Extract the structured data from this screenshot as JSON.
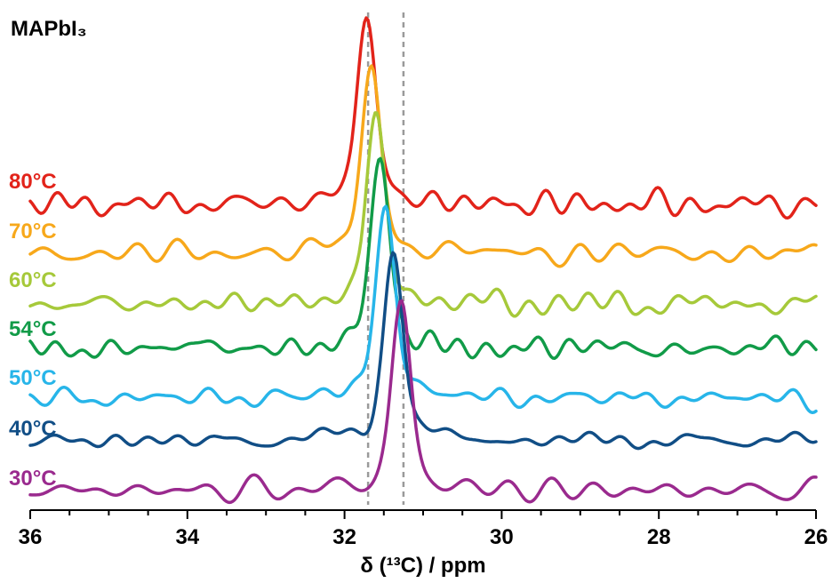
{
  "chart_data": {
    "type": "line",
    "title": "MAPbI₃",
    "xlabel": "δ (¹³C) / ppm",
    "xlim": [
      36,
      26
    ],
    "x_ticks": [
      "36",
      "34",
      "32",
      "30",
      "28",
      "26"
    ],
    "x_tick_values": [
      36,
      34,
      32,
      30,
      28,
      26
    ],
    "reference_lines_ppm": [
      31.7,
      31.25
    ],
    "series": [
      {
        "name": "80°C",
        "color": "#e2231a",
        "peak_ppm": 31.72,
        "peak_height": 1.0
      },
      {
        "name": "70°C",
        "color": "#f7a81b",
        "peak_ppm": 31.66,
        "peak_height": 0.94
      },
      {
        "name": "60°C",
        "color": "#a6c93a",
        "peak_ppm": 31.6,
        "peak_height": 0.92
      },
      {
        "name": "54°C",
        "color": "#119b48",
        "peak_ppm": 31.55,
        "peak_height": 0.9
      },
      {
        "name": "50°C",
        "color": "#27b5e9",
        "peak_ppm": 31.48,
        "peak_height": 0.88
      },
      {
        "name": "40°C",
        "color": "#114e86",
        "peak_ppm": 31.38,
        "peak_height": 0.86
      },
      {
        "name": "30°C",
        "color": "#9a2a8e",
        "peak_ppm": 31.28,
        "peak_height": 0.84
      }
    ]
  }
}
